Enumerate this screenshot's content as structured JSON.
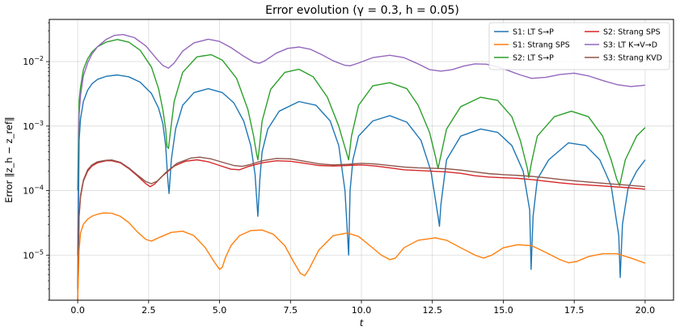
{
  "chart_data": {
    "type": "line",
    "title": "Error evolution  (γ = 0.3, h = 0.05)",
    "xlabel": "t",
    "ylabel": "Error ‖z_h − z_ref‖",
    "xlim": [
      -1,
      21
    ],
    "ylim": [
      2e-06,
      0.045
    ],
    "yscale": "log",
    "grid": true,
    "legend_position": "top-right",
    "legend_columns": 2,
    "x_ticks": [
      {
        "value": 0,
        "label": "0.0"
      },
      {
        "value": 2.5,
        "label": "2.5"
      },
      {
        "value": 5,
        "label": "5.0"
      },
      {
        "value": 7.5,
        "label": "7.5"
      },
      {
        "value": 10,
        "label": "10.0"
      },
      {
        "value": 12.5,
        "label": "12.5"
      },
      {
        "value": 15,
        "label": "15.0"
      },
      {
        "value": 17.5,
        "label": "17.5"
      },
      {
        "value": 20,
        "label": "20.0"
      }
    ],
    "y_ticks": [
      {
        "value": 1e-05,
        "base": "10",
        "exp": "−5"
      },
      {
        "value": 0.0001,
        "base": "10",
        "exp": "−4"
      },
      {
        "value": 0.001,
        "base": "10",
        "exp": "−3"
      },
      {
        "value": 0.01,
        "base": "10",
        "exp": "−2"
      }
    ],
    "series": [
      {
        "name": "S1: LT S→P",
        "color": "#1f77b4",
        "x": [
          0,
          0.05,
          0.1,
          0.2,
          0.35,
          0.5,
          0.7,
          1.0,
          1.4,
          1.8,
          2.2,
          2.6,
          2.85,
          3.0,
          3.1,
          3.18,
          3.22,
          3.3,
          3.45,
          3.7,
          4.1,
          4.6,
          5.1,
          5.5,
          5.85,
          6.1,
          6.25,
          6.35,
          6.42,
          6.5,
          6.7,
          7.1,
          7.8,
          8.4,
          8.9,
          9.2,
          9.42,
          9.55,
          9.6,
          9.7,
          9.9,
          10.4,
          11.0,
          11.6,
          12.1,
          12.45,
          12.7,
          12.75,
          12.8,
          13.0,
          13.5,
          14.2,
          14.8,
          15.3,
          15.7,
          15.93,
          15.98,
          16.05,
          16.2,
          16.6,
          17.3,
          17.9,
          18.4,
          18.8,
          19.07,
          19.12,
          19.2,
          19.4,
          19.7,
          20.0
        ],
        "y": [
          3e-06,
          0.0006,
          0.0013,
          0.0024,
          0.0036,
          0.0045,
          0.0053,
          0.0059,
          0.0062,
          0.0058,
          0.0048,
          0.0032,
          0.0019,
          0.0011,
          0.0005,
          0.00014,
          9e-05,
          0.0003,
          0.0009,
          0.0021,
          0.0033,
          0.0038,
          0.0033,
          0.0023,
          0.0012,
          0.0005,
          0.00018,
          4e-05,
          0.00015,
          0.0004,
          0.0009,
          0.0017,
          0.0024,
          0.0021,
          0.0012,
          0.0005,
          0.0001,
          1e-05,
          0.0001,
          0.0003,
          0.0007,
          0.0012,
          0.00145,
          0.00115,
          0.0006,
          0.0002,
          4e-05,
          2.8e-05,
          6e-05,
          0.0003,
          0.0007,
          0.0009,
          0.0008,
          0.0005,
          0.0002,
          5e-05,
          6e-06,
          4e-05,
          0.00015,
          0.0003,
          0.00055,
          0.0005,
          0.0003,
          0.00012,
          2e-05,
          4.5e-06,
          3e-05,
          0.00011,
          0.0002,
          0.0003
        ]
      },
      {
        "name": "S1: Strang SPS",
        "color": "#ff7f0e",
        "x": [
          0,
          0.05,
          0.1,
          0.2,
          0.35,
          0.5,
          0.7,
          0.9,
          1.2,
          1.5,
          1.8,
          2.1,
          2.4,
          2.6,
          2.9,
          3.3,
          3.7,
          4.1,
          4.5,
          4.8,
          5.0,
          5.1,
          5.2,
          5.4,
          5.7,
          6.1,
          6.5,
          6.9,
          7.3,
          7.6,
          7.85,
          8.0,
          8.15,
          8.5,
          9.0,
          9.5,
          9.9,
          10.3,
          10.7,
          11.0,
          11.2,
          11.5,
          12.0,
          12.6,
          13.0,
          13.5,
          14.0,
          14.3,
          14.6,
          15.0,
          15.5,
          16.0,
          16.5,
          17.0,
          17.3,
          17.6,
          18.0,
          18.5,
          19.0,
          19.5,
          20.0
        ],
        "y": [
          2e-06,
          1.2e-05,
          2.2e-05,
          3e-05,
          3.6e-05,
          4e-05,
          4.3e-05,
          4.5e-05,
          4.45e-05,
          4e-05,
          3.2e-05,
          2.3e-05,
          1.75e-05,
          1.65e-05,
          1.9e-05,
          2.25e-05,
          2.35e-05,
          2e-05,
          1.3e-05,
          8e-06,
          6e-06,
          6.5e-06,
          9e-06,
          1.4e-05,
          2e-05,
          2.4e-05,
          2.45e-05,
          2.1e-05,
          1.4e-05,
          8e-06,
          5.2e-06,
          4.8e-06,
          6e-06,
          1.2e-05,
          2e-05,
          2.2e-05,
          1.95e-05,
          1.4e-05,
          1e-05,
          8.5e-06,
          9e-06,
          1.3e-05,
          1.7e-05,
          1.85e-05,
          1.7e-05,
          1.3e-05,
          1e-05,
          9e-06,
          1e-05,
          1.3e-05,
          1.45e-05,
          1.4e-05,
          1.1e-05,
          8.5e-06,
          7.6e-06,
          8e-06,
          9.5e-06,
          1.05e-05,
          1.05e-05,
          9e-06,
          7.5e-06
        ]
      },
      {
        "name": "S2: LT S→P",
        "color": "#2ca02c",
        "x": [
          0,
          0.05,
          0.1,
          0.2,
          0.35,
          0.5,
          0.7,
          1.0,
          1.4,
          1.8,
          2.2,
          2.6,
          2.85,
          3.0,
          3.1,
          3.15,
          3.2,
          3.28,
          3.4,
          3.7,
          4.2,
          4.7,
          5.1,
          5.6,
          6.0,
          6.2,
          6.3,
          6.35,
          6.4,
          6.5,
          6.8,
          7.3,
          7.8,
          8.3,
          8.8,
          9.2,
          9.45,
          9.55,
          9.65,
          9.9,
          10.4,
          11.0,
          11.6,
          12.0,
          12.4,
          12.6,
          12.7,
          12.8,
          13.0,
          13.5,
          14.2,
          14.8,
          15.3,
          15.6,
          15.85,
          15.9,
          16.0,
          16.2,
          16.8,
          17.4,
          18.0,
          18.5,
          18.8,
          19.0,
          19.1,
          19.3,
          19.7,
          20.0
        ],
        "y": [
          0.0001,
          0.0025,
          0.004,
          0.0075,
          0.011,
          0.014,
          0.017,
          0.02,
          0.022,
          0.02,
          0.015,
          0.0082,
          0.0038,
          0.0018,
          0.0009,
          0.00048,
          0.00045,
          0.0009,
          0.0024,
          0.0068,
          0.0118,
          0.0128,
          0.0105,
          0.0055,
          0.0018,
          0.0007,
          0.00038,
          0.0003,
          0.00045,
          0.0012,
          0.0037,
          0.0068,
          0.0076,
          0.0058,
          0.0028,
          0.001,
          0.00042,
          0.0003,
          0.0007,
          0.0021,
          0.0042,
          0.0047,
          0.0038,
          0.0021,
          0.0008,
          0.00035,
          0.00022,
          0.00035,
          0.0009,
          0.002,
          0.0028,
          0.0025,
          0.0014,
          0.0006,
          0.00022,
          0.00016,
          0.00028,
          0.0007,
          0.0014,
          0.0017,
          0.0014,
          0.0007,
          0.0003,
          0.00015,
          0.00012,
          0.0003,
          0.0007,
          0.00095
        ]
      },
      {
        "name": "S2: Strang SPS",
        "color": "#d62728",
        "x": [
          0,
          0.05,
          0.1,
          0.2,
          0.35,
          0.5,
          0.7,
          1.0,
          1.2,
          1.5,
          1.8,
          2.1,
          2.4,
          2.55,
          2.7,
          3.0,
          3.4,
          3.8,
          4.2,
          4.6,
          5.0,
          5.4,
          5.7,
          6.0,
          6.5,
          7.0,
          7.5,
          8.0,
          8.5,
          9.0,
          9.5,
          10.0,
          10.5,
          11.0,
          11.5,
          12.0,
          12.5,
          13.0,
          13.5,
          14.0,
          14.5,
          15.0,
          15.5,
          16.0,
          16.5,
          17.0,
          17.5,
          18.0,
          18.5,
          19.0,
          19.5,
          20.0
        ],
        "y": [
          2e-06,
          4e-05,
          8e-05,
          0.00014,
          0.0002,
          0.00024,
          0.00027,
          0.00029,
          0.00029,
          0.00027,
          0.00022,
          0.00017,
          0.000128,
          0.000115,
          0.000125,
          0.00017,
          0.00024,
          0.000285,
          0.0003,
          0.00028,
          0.000245,
          0.000215,
          0.00021,
          0.000235,
          0.00027,
          0.00029,
          0.000285,
          0.000265,
          0.000245,
          0.00024,
          0.000245,
          0.00025,
          0.00024,
          0.000225,
          0.00021,
          0.000205,
          0.0002,
          0.000195,
          0.000185,
          0.00017,
          0.000162,
          0.000158,
          0.000155,
          0.000148,
          0.00014,
          0.000132,
          0.000126,
          0.000122,
          0.000118,
          0.000114,
          0.00011,
          0.000105
        ]
      },
      {
        "name": "S3: LT K→V→D",
        "color": "#9467bd",
        "x": [
          0,
          0.05,
          0.1,
          0.2,
          0.35,
          0.5,
          0.7,
          1.0,
          1.3,
          1.6,
          2.0,
          2.4,
          2.8,
          3.0,
          3.2,
          3.4,
          3.7,
          4.1,
          4.6,
          5.0,
          5.4,
          5.8,
          6.2,
          6.4,
          6.6,
          7.0,
          7.4,
          7.8,
          8.2,
          8.6,
          9.0,
          9.4,
          9.6,
          9.9,
          10.4,
          11.0,
          11.5,
          12.0,
          12.4,
          12.8,
          13.2,
          13.6,
          14.0,
          14.4,
          14.8,
          15.2,
          15.6,
          16.0,
          16.5,
          17.0,
          17.5,
          18.0,
          18.5,
          19.0,
          19.5,
          20.0
        ],
        "y": [
          1e-05,
          0.0015,
          0.003,
          0.006,
          0.0095,
          0.013,
          0.017,
          0.022,
          0.0255,
          0.0262,
          0.0235,
          0.0175,
          0.0108,
          0.0087,
          0.0079,
          0.0095,
          0.0145,
          0.0195,
          0.0222,
          0.0205,
          0.0165,
          0.0125,
          0.0098,
          0.0094,
          0.0103,
          0.0135,
          0.016,
          0.0168,
          0.0155,
          0.0128,
          0.0103,
          0.0088,
          0.0086,
          0.0095,
          0.0115,
          0.0125,
          0.0115,
          0.0092,
          0.0075,
          0.0071,
          0.0075,
          0.0085,
          0.0092,
          0.0091,
          0.0083,
          0.0072,
          0.0062,
          0.0055,
          0.0057,
          0.0063,
          0.0066,
          0.006,
          0.0051,
          0.0044,
          0.0041,
          0.0043
        ]
      },
      {
        "name": "S3: Strang KVD",
        "color": "#8c564b",
        "x": [
          0,
          0.05,
          0.1,
          0.2,
          0.35,
          0.5,
          0.7,
          1.0,
          1.2,
          1.5,
          1.8,
          2.1,
          2.4,
          2.6,
          2.8,
          3.1,
          3.5,
          4.0,
          4.3,
          4.7,
          5.1,
          5.5,
          5.8,
          6.1,
          6.5,
          7.0,
          7.5,
          8.0,
          8.5,
          9.0,
          9.5,
          10.0,
          10.5,
          11.0,
          11.5,
          12.0,
          12.5,
          13.0,
          13.5,
          14.0,
          14.5,
          15.0,
          15.5,
          16.0,
          16.5,
          17.0,
          17.5,
          18.0,
          18.5,
          19.0,
          19.5,
          20.0
        ],
        "y": [
          2e-06,
          4.2e-05,
          8.5e-05,
          0.000145,
          0.00021,
          0.00025,
          0.00028,
          0.000295,
          0.000298,
          0.000275,
          0.000225,
          0.000175,
          0.000138,
          0.000128,
          0.00014,
          0.00019,
          0.000265,
          0.00032,
          0.00033,
          0.00031,
          0.000275,
          0.000245,
          0.000238,
          0.000255,
          0.00029,
          0.000315,
          0.00031,
          0.000285,
          0.00026,
          0.00025,
          0.000255,
          0.000265,
          0.000258,
          0.000245,
          0.000232,
          0.000225,
          0.000222,
          0.000218,
          0.000208,
          0.000195,
          0.000183,
          0.000177,
          0.000172,
          0.000166,
          0.000158,
          0.000149,
          0.000142,
          0.000136,
          0.00013,
          0.000125,
          0.00012,
          0.000115
        ]
      }
    ]
  }
}
